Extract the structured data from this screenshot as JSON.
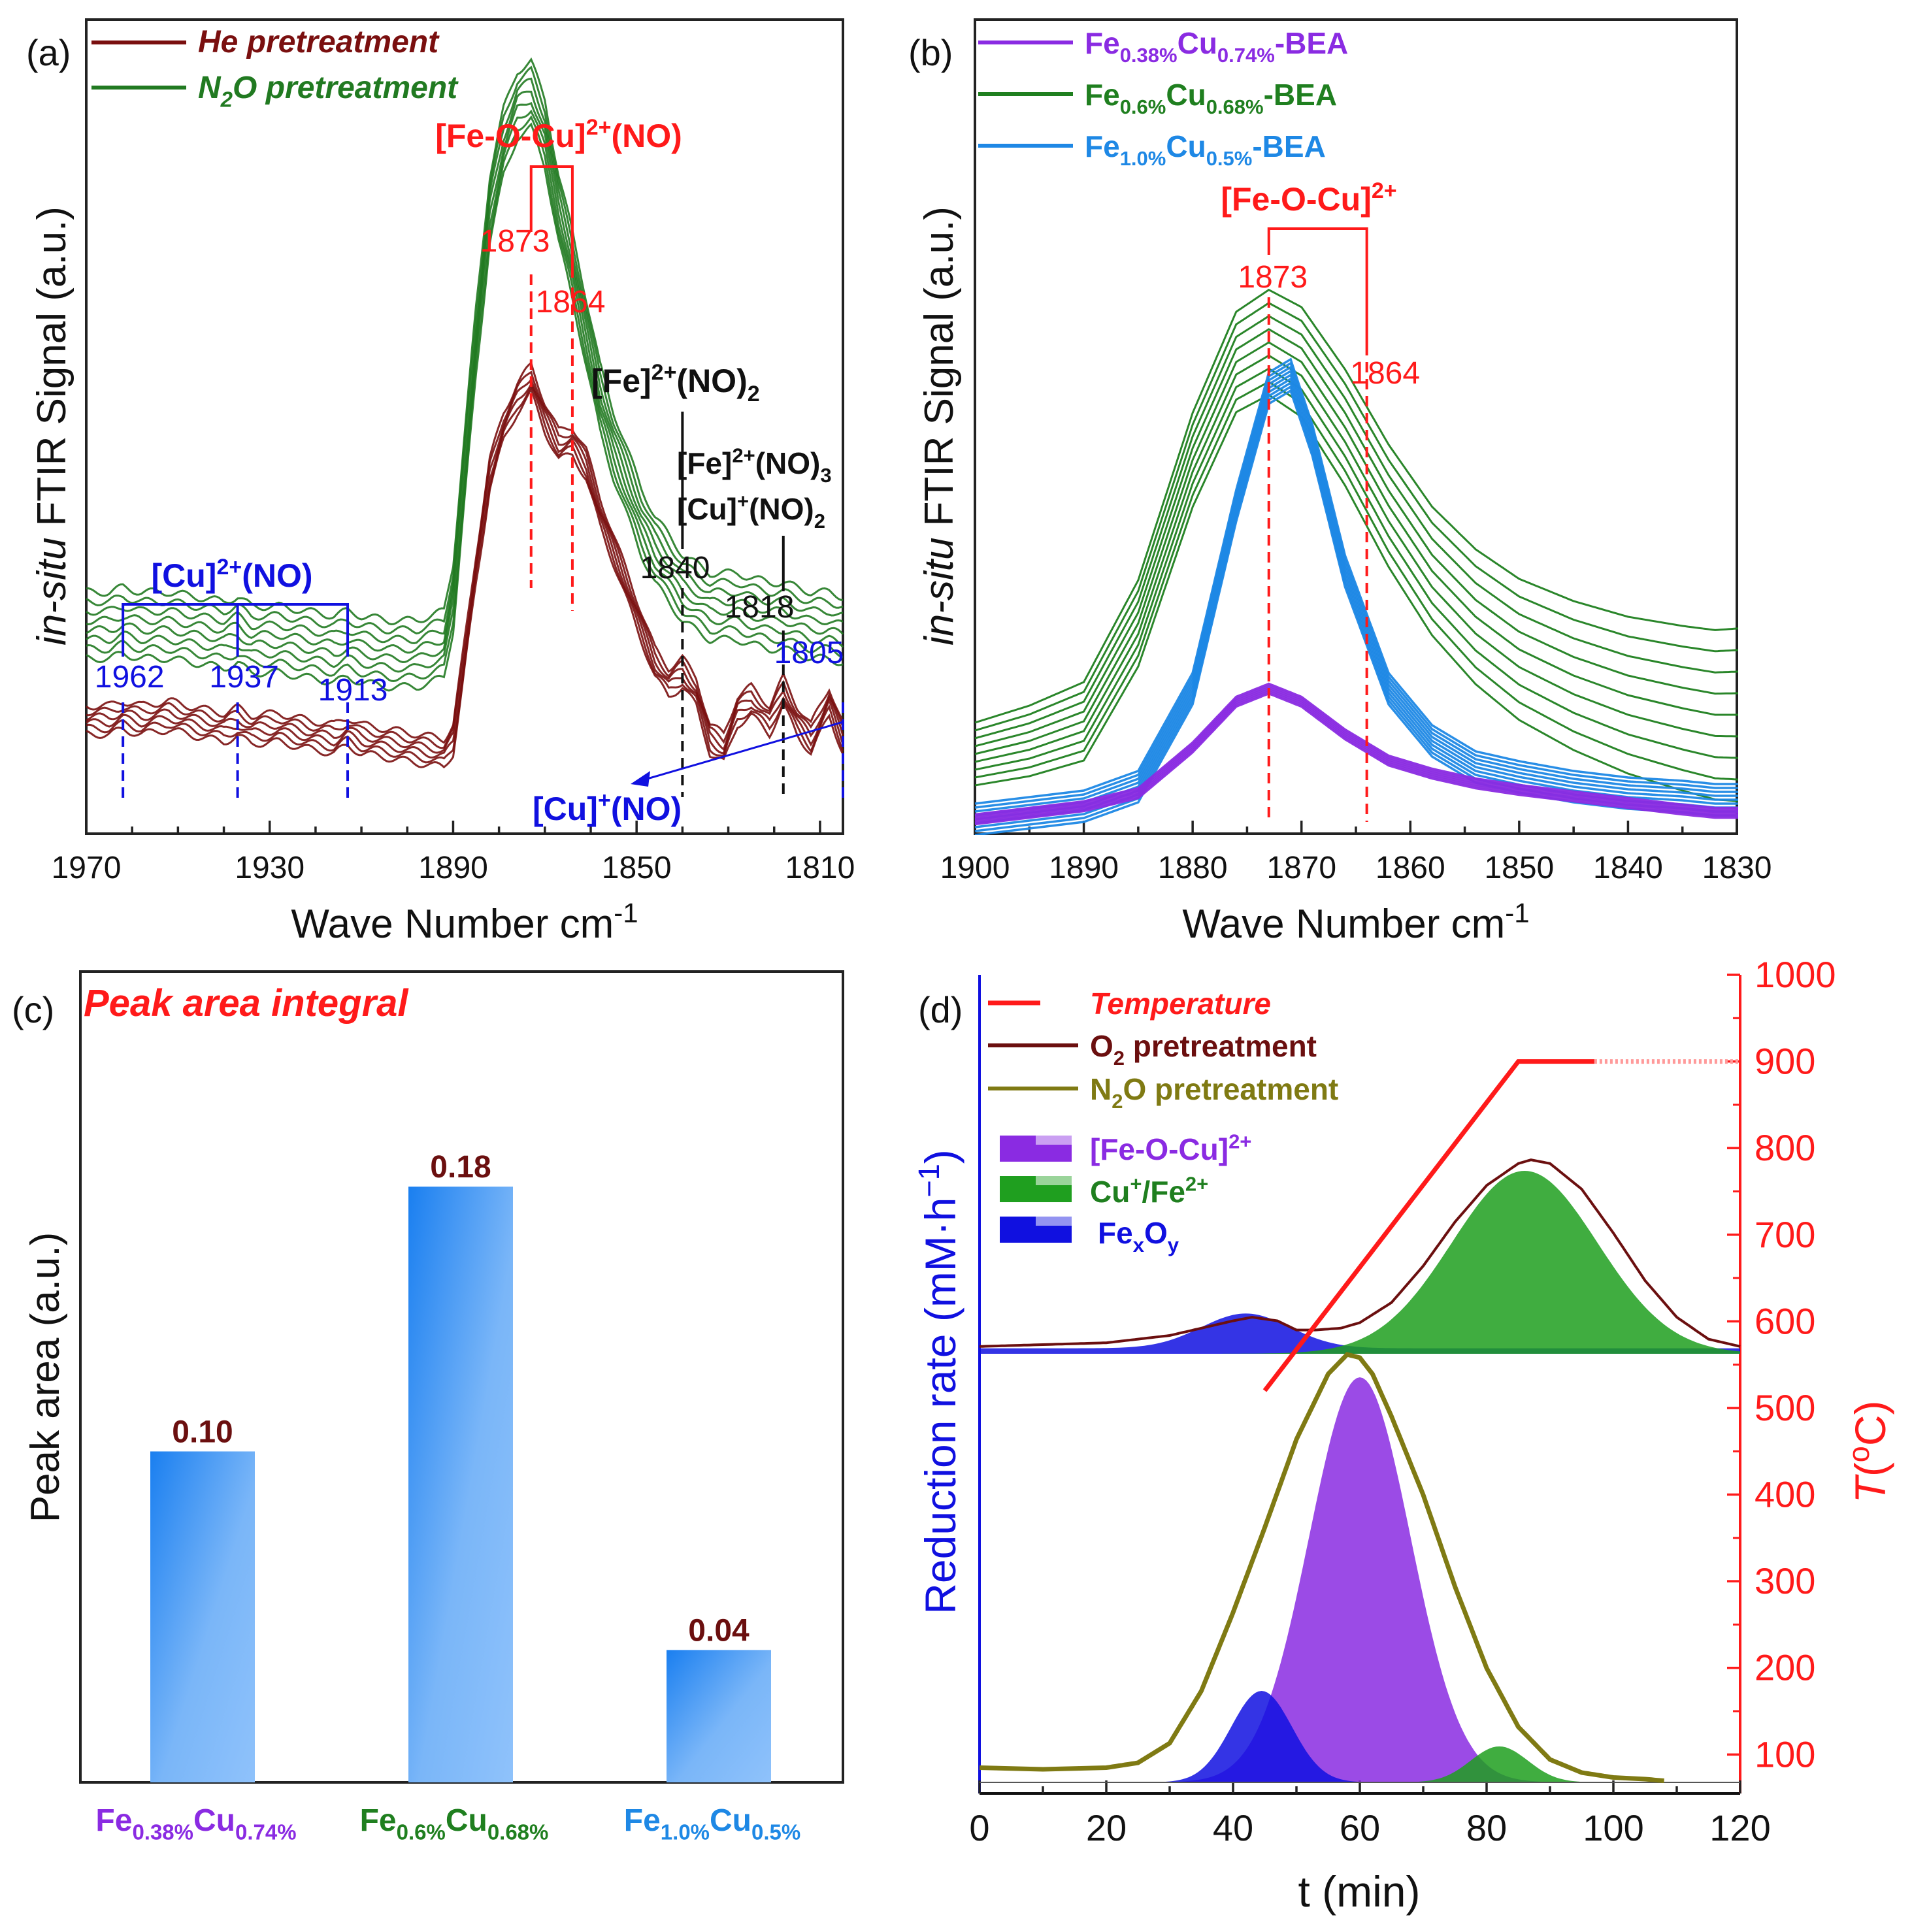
{
  "colors": {
    "he": "#7a0f0f",
    "n2o": "#217a21",
    "purple": "#8a2be2",
    "green": "#1f7f1f",
    "blue": "#1e88e5",
    "red": "#ff1a1a",
    "label_blue": "#1010e0",
    "olive": "#7f7a13",
    "bar_top": "#1a7ff0",
    "bar_bottom": "#8fc2fb",
    "value_label": "#6b0f0f"
  },
  "chart_data": [
    {
      "panel": "(a)",
      "type": "line",
      "xlabel": "Wave Number cm",
      "xlabel_sup": "-1",
      "ylabel_italic": "in-situ",
      "ylabel": "FTIR Signal (a.u.)",
      "xlim": [
        1970,
        1805
      ],
      "xticks": [
        1970,
        1930,
        1890,
        1850,
        1810
      ],
      "legend": [
        {
          "label": "He pretreatment",
          "color": "#7a0f0f"
        },
        {
          "label": "N",
          "sub": "2",
          "rest": "O pretreatment",
          "color": "#217a21"
        }
      ],
      "series": [
        {
          "name": "He pretreatment",
          "color": "#7a0f0f",
          "n_curves": 6,
          "offset_step": 0.006,
          "base": 0.12,
          "x": [
            1970,
            1965,
            1962,
            1958,
            1952,
            1946,
            1940,
            1937,
            1934,
            1928,
            1922,
            1916,
            1913,
            1910,
            1904,
            1898,
            1892,
            1890,
            1888,
            1885,
            1882,
            1879,
            1876,
            1873,
            1870,
            1867,
            1864,
            1861,
            1858,
            1855,
            1852,
            1849,
            1846,
            1843,
            1840,
            1837,
            1834,
            1831,
            1828,
            1825,
            1821,
            1818,
            1815,
            1812,
            1808,
            1805
          ],
          "y": [
            0.12,
            0.12,
            0.125,
            0.12,
            0.125,
            0.118,
            0.112,
            0.118,
            0.11,
            0.112,
            0.105,
            0.1,
            0.108,
            0.1,
            0.095,
            0.09,
            0.085,
            0.1,
            0.17,
            0.28,
            0.38,
            0.43,
            0.46,
            0.48,
            0.44,
            0.41,
            0.415,
            0.39,
            0.34,
            0.3,
            0.26,
            0.22,
            0.18,
            0.16,
            0.17,
            0.15,
            0.1,
            0.09,
            0.13,
            0.14,
            0.12,
            0.15,
            0.12,
            0.1,
            0.14,
            0.1
          ]
        },
        {
          "name": "N2O pretreatment",
          "color": "#217a21",
          "n_curves": 8,
          "offset_step": 0.01,
          "base": 0.2,
          "x": [
            1970,
            1965,
            1962,
            1958,
            1952,
            1946,
            1940,
            1937,
            1934,
            1928,
            1922,
            1916,
            1913,
            1910,
            1904,
            1898,
            1892,
            1890,
            1888,
            1885,
            1882,
            1879,
            1876,
            1873,
            1870,
            1867,
            1864,
            1861,
            1858,
            1855,
            1852,
            1849,
            1846,
            1843,
            1840,
            1837,
            1834,
            1831,
            1828,
            1825,
            1821,
            1818,
            1815,
            1812,
            1808,
            1805
          ],
          "y": [
            0.22,
            0.22,
            0.225,
            0.22,
            0.22,
            0.215,
            0.21,
            0.215,
            0.205,
            0.205,
            0.2,
            0.195,
            0.2,
            0.195,
            0.19,
            0.19,
            0.2,
            0.25,
            0.36,
            0.52,
            0.66,
            0.73,
            0.77,
            0.78,
            0.74,
            0.66,
            0.6,
            0.53,
            0.46,
            0.41,
            0.37,
            0.33,
            0.3,
            0.28,
            0.26,
            0.25,
            0.24,
            0.24,
            0.24,
            0.235,
            0.23,
            0.23,
            0.225,
            0.22,
            0.22,
            0.215
          ]
        }
      ],
      "annotations": [
        {
          "text": "[Fe-O-Cu]",
          "sup": "2+",
          "rest": "(NO)",
          "color": "#ff1a1a"
        },
        {
          "text": "1873",
          "color": "#ff1a1a"
        },
        {
          "text": "1864",
          "color": "#ff1a1a"
        },
        {
          "text": "[Fe]",
          "sup": "2+",
          "rest": "(NO)",
          "sub": "2",
          "color": "#111111"
        },
        {
          "text": "[Fe]",
          "sup": "2+",
          "rest": "(NO)",
          "sub": "3",
          "color": "#111111"
        },
        {
          "text": "[Cu]",
          "sup": "+",
          "rest": "(NO)",
          "sub": "2",
          "color": "#111111"
        },
        {
          "text": "1840",
          "color": "#111111"
        },
        {
          "text": "1818",
          "color": "#111111"
        },
        {
          "text": "[Cu]",
          "sup": "2+",
          "rest": "(NO)",
          "color": "#1010e0"
        },
        {
          "text": "1962",
          "color": "#1010e0"
        },
        {
          "text": "1937",
          "color": "#1010e0"
        },
        {
          "text": "1913",
          "color": "#1010e0"
        },
        {
          "text": "1805",
          "color": "#1010e0"
        },
        {
          "text": "[Cu]",
          "sup": "+",
          "rest": "(NO)",
          "color": "#1010e0"
        }
      ]
    },
    {
      "panel": "(b)",
      "type": "line",
      "xlabel": "Wave Number cm",
      "xlabel_sup": "-1",
      "ylabel_italic": "in-situ",
      "ylabel": "FTIR Signal (a.u.)",
      "xlim": [
        1900,
        1830
      ],
      "xticks": [
        1900,
        1890,
        1880,
        1870,
        1860,
        1850,
        1840,
        1830
      ],
      "legend": [
        {
          "a": "Fe",
          "as": "0.38%",
          "b": "Cu",
          "bs": "0.74%",
          "c": "-BEA",
          "color": "#8a2be2"
        },
        {
          "a": "Fe",
          "as": "0.6%",
          "b": "Cu",
          "bs": "0.68%",
          "c": "-BEA",
          "color": "#1f7f1f"
        },
        {
          "a": "Fe",
          "as": "1.0%",
          "b": "Cu",
          "bs": "0.5%",
          "c": "-BEA",
          "color": "#1e88e5"
        }
      ],
      "series": [
        {
          "name": "Fe0.38%Cu0.74%-BEA",
          "color": "#8a2be2",
          "n_curves": 6,
          "offset_step": 0.003,
          "x": [
            1900,
            1890,
            1885,
            1880,
            1876,
            1873,
            1870,
            1866,
            1862,
            1858,
            1854,
            1850,
            1845,
            1840,
            1835,
            1832
          ],
          "y": [
            0.0,
            0.02,
            0.04,
            0.11,
            0.18,
            0.2,
            0.18,
            0.13,
            0.09,
            0.07,
            0.055,
            0.045,
            0.035,
            0.025,
            0.015,
            0.01
          ]
        },
        {
          "name": "Fe0.6%Cu0.68%-BEA",
          "color": "#1f7f1f",
          "n_curves": 9,
          "offset_step": 0.012,
          "x": [
            1900,
            1895,
            1890,
            1885,
            1880,
            1876,
            1873,
            1870,
            1866,
            1862,
            1858,
            1854,
            1850,
            1845,
            1840,
            1835,
            1832
          ],
          "y": [
            0.1,
            0.12,
            0.15,
            0.3,
            0.55,
            0.7,
            0.73,
            0.7,
            0.6,
            0.48,
            0.38,
            0.31,
            0.26,
            0.22,
            0.19,
            0.17,
            0.16
          ]
        },
        {
          "name": "Fe1.0%Cu0.5%-BEA",
          "color": "#1e88e5",
          "n_curves": 9,
          "offset_step": 0.006,
          "x": [
            1900,
            1890,
            1885,
            1880,
            1876,
            1873,
            1871,
            1869,
            1866,
            1862,
            1858,
            1854,
            1850,
            1845,
            1840,
            1835,
            1832
          ],
          "y": [
            0.0,
            0.02,
            0.05,
            0.2,
            0.48,
            0.66,
            0.68,
            0.58,
            0.38,
            0.2,
            0.12,
            0.08,
            0.065,
            0.05,
            0.04,
            0.035,
            0.03
          ]
        }
      ],
      "annotations": [
        {
          "text": "[Fe-O-Cu]",
          "sup": "2+",
          "color": "#ff1a1a"
        },
        {
          "text": "1873",
          "color": "#ff1a1a"
        },
        {
          "text": "1864",
          "color": "#ff1a1a"
        }
      ]
    },
    {
      "panel": "(c)",
      "type": "bar",
      "title": "Peak area integral",
      "ylabel": "Peak area (a.u.)",
      "ylim": [
        0,
        0.245
      ],
      "categories": [
        {
          "a": "Fe",
          "as": "0.38%",
          "b": "Cu",
          "bs": "0.74%",
          "color": "#8a2be2"
        },
        {
          "a": "Fe",
          "as": "0.6%",
          "b": "Cu",
          "bs": "0.68%",
          "color": "#1f7f1f"
        },
        {
          "a": "Fe",
          "as": "1.0%",
          "b": "Cu",
          "bs": "0.5%",
          "color": "#1e88e5"
        }
      ],
      "values": [
        0.1,
        0.18,
        0.04
      ],
      "value_labels": [
        "0.10",
        "0.18",
        "0.04"
      ]
    },
    {
      "panel": "(d)",
      "type": "area",
      "xlabel": "t (min)",
      "xlim": [
        0,
        120
      ],
      "xticks": [
        0,
        20,
        40,
        60,
        80,
        100,
        120
      ],
      "ylabel_left": "Reduction rate (mM·h",
      "ylabel_left_sup": "−1",
      "ylabel_left_end": ")",
      "ylabel_right": "T",
      "ylabel_right_rest": "(",
      "ylabel_right_sup": "o",
      "ylabel_right_end": "C)",
      "y2lim": [
        55,
        1000
      ],
      "y2ticks": [
        100,
        200,
        300,
        400,
        500,
        600,
        700,
        800,
        900,
        1000
      ],
      "legend": [
        {
          "label": "Temperature",
          "color": "#ff1a1a",
          "italic": true
        },
        {
          "label": "O",
          "sub": "2",
          "rest": " pretreatment",
          "color": "#6b0f0f"
        },
        {
          "label": "N",
          "sub": "2",
          "rest": "O pretreatment",
          "color": "#7f7a13"
        },
        {
          "label": "[Fe-O-Cu]",
          "sup": "2+",
          "color": "#8a2be2"
        },
        {
          "label": "Cu",
          "sup": "+",
          "rest": "/Fe",
          "sup2": "2+",
          "color": "#1f9f1f"
        },
        {
          "label": "Fe",
          "sub": "x",
          "rest": "O",
          "sub2": "y",
          "color": "#1010e0"
        }
      ],
      "temperature": {
        "t": [
          45,
          85,
          97,
          120
        ],
        "T": [
          520,
          900,
          900,
          900
        ],
        "dashed_from": 97
      },
      "series": [
        {
          "name": "O2 pretreatment",
          "color": "#6b0f0f",
          "baseline": 0,
          "t": [
            0,
            10,
            20,
            30,
            35,
            40,
            43,
            47,
            50,
            53,
            57,
            60,
            65,
            70,
            75,
            80,
            85,
            87,
            90,
            95,
            100,
            105,
            110,
            115,
            120
          ],
          "v": [
            0.02,
            0.025,
            0.03,
            0.05,
            0.07,
            0.09,
            0.1,
            0.09,
            0.065,
            0.065,
            0.07,
            0.085,
            0.14,
            0.24,
            0.36,
            0.46,
            0.52,
            0.53,
            0.52,
            0.45,
            0.33,
            0.2,
            0.1,
            0.04,
            0.02
          ]
        },
        {
          "name": "FexOy (O2)",
          "color": "#1010e0",
          "peak_t": 42,
          "width": 7,
          "amp": 0.095,
          "baseline": 0.015
        },
        {
          "name": "Cu+/Fe2+ (O2)",
          "color": "#1f9f1f",
          "peak_t": 86,
          "width": 11.5,
          "amp": 0.5,
          "baseline": 0.0
        },
        {
          "name": "N2O pretreatment",
          "color": "#7f7a13",
          "t": [
            0,
            10,
            20,
            25,
            30,
            35,
            40,
            45,
            50,
            55,
            58,
            60,
            62,
            65,
            70,
            75,
            80,
            85,
            90,
            95,
            100,
            105,
            108
          ],
          "v": [
            0.045,
            0.04,
            0.045,
            0.06,
            0.12,
            0.28,
            0.52,
            0.78,
            1.05,
            1.25,
            1.31,
            1.3,
            1.25,
            1.12,
            0.88,
            0.6,
            0.35,
            0.17,
            0.07,
            0.03,
            0.015,
            0.01,
            0.005
          ]
        },
        {
          "name": "[Fe-O-Cu]2+ (N2O)",
          "color": "#8a2be2",
          "peak_t": 60,
          "width": 8,
          "amp": 1.24,
          "baseline": 0.0
        },
        {
          "name": "FexOy (N2O)",
          "color": "#1010e0",
          "peak_t": 44.5,
          "width": 4.8,
          "amp": 0.28,
          "baseline": 0.0
        },
        {
          "name": "Cu+/Fe2+ (N2O)",
          "color": "#1f9f1f",
          "peak_t": 82,
          "width": 4.5,
          "amp": 0.11,
          "baseline": 0.0
        }
      ]
    }
  ]
}
